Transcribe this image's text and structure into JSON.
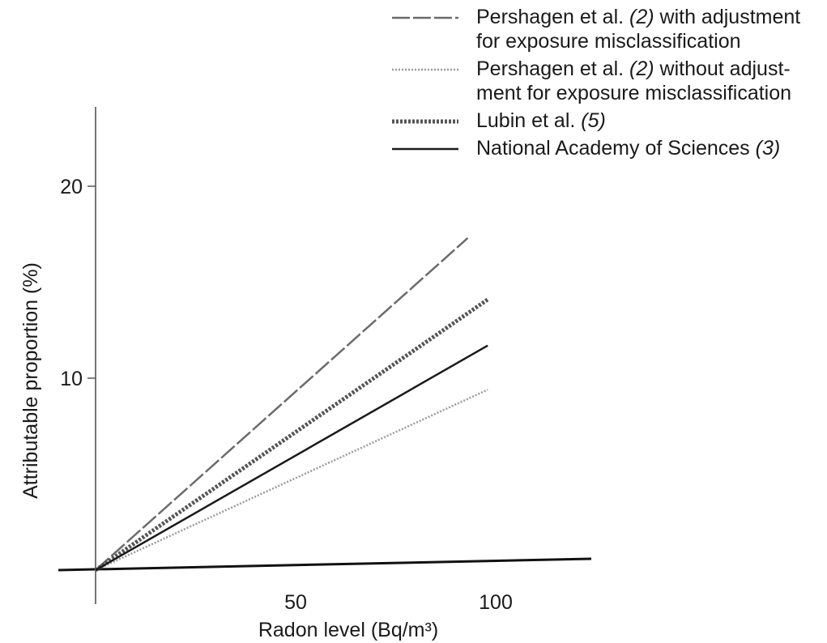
{
  "chart_data": {
    "type": "line",
    "xlabel": "Radon level (Bq/m³)",
    "ylabel": "Attributable proportion (%)",
    "xticks": [
      50,
      100
    ],
    "yticks": [
      10,
      20
    ],
    "xlim": [
      0,
      125
    ],
    "ylim": [
      0,
      25
    ],
    "series": [
      {
        "name": "Pershagen et al. (2) with adjustment for exposure misclassification",
        "name_parts": [
          "Pershagen et al. ",
          "(2)",
          " with adjustment",
          "for exposure misclassification"
        ],
        "style": "dashed",
        "color": "#6b6b6b",
        "x": [
          0,
          93
        ],
        "y": [
          0,
          17.3
        ]
      },
      {
        "name": "Pershagen et al. (2) without adjustment for exposure misclassification",
        "name_parts": [
          "Pershagen et al. ",
          "(2)",
          " without adjust-",
          "ment for exposure misclassification"
        ],
        "style": "dotted",
        "color": "#9a9a9a",
        "x": [
          0,
          98
        ],
        "y": [
          0,
          9.4
        ]
      },
      {
        "name": "Lubin et al. (5)",
        "name_parts": [
          "Lubin et al. ",
          "(5)",
          "",
          ""
        ],
        "style": "thick-dotted",
        "color": "#555555",
        "x": [
          0,
          98
        ],
        "y": [
          0,
          14.1
        ]
      },
      {
        "name": "National Academy of Sciences (3)",
        "name_parts": [
          "National Academy of Sciences ",
          "(3)",
          "",
          ""
        ],
        "style": "solid",
        "color": "#1a1a1a",
        "x": [
          0,
          98
        ],
        "y": [
          0,
          11.7
        ]
      }
    ]
  }
}
